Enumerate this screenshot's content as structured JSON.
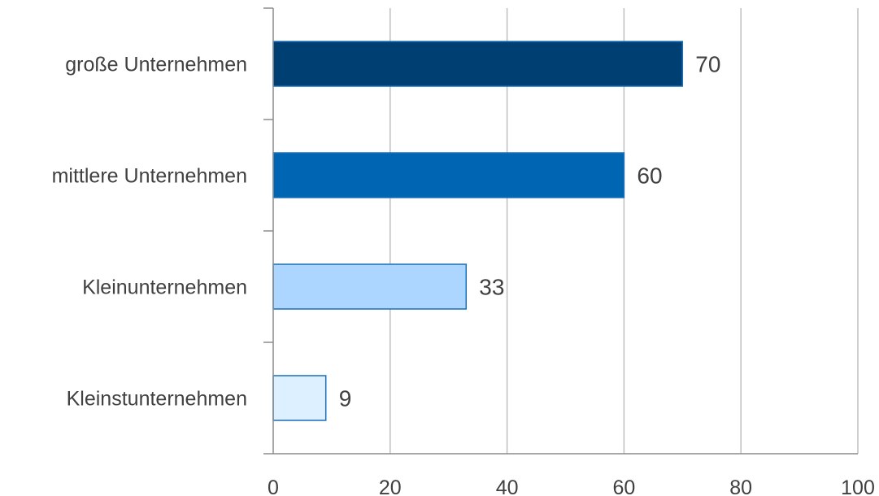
{
  "chart_data": {
    "type": "bar",
    "orientation": "horizontal",
    "categories": [
      "große Unternehmen",
      "mittlere Unternehmen",
      "Kleinunternehmen",
      "Kleinstunternehmen"
    ],
    "values": [
      70,
      60,
      33,
      9
    ],
    "data_labels": [
      "70",
      "60",
      "33",
      "9"
    ],
    "bar_colors": [
      "#003f72",
      "#0066b3",
      "#acd5ff",
      "#ddf0ff"
    ],
    "bar_outline": "#1a6fb5",
    "xlim": [
      0,
      100
    ],
    "x_ticks": [
      0,
      20,
      40,
      60,
      80,
      100
    ],
    "x_tick_labels": [
      "0",
      "20",
      "40",
      "60",
      "80",
      "100"
    ],
    "grid": "vertical",
    "grid_color": "#bfbfbf",
    "axis_color": "#8c8c8c",
    "text_color": "#404040",
    "legend": "none",
    "title": "",
    "xlabel": "",
    "ylabel": ""
  }
}
